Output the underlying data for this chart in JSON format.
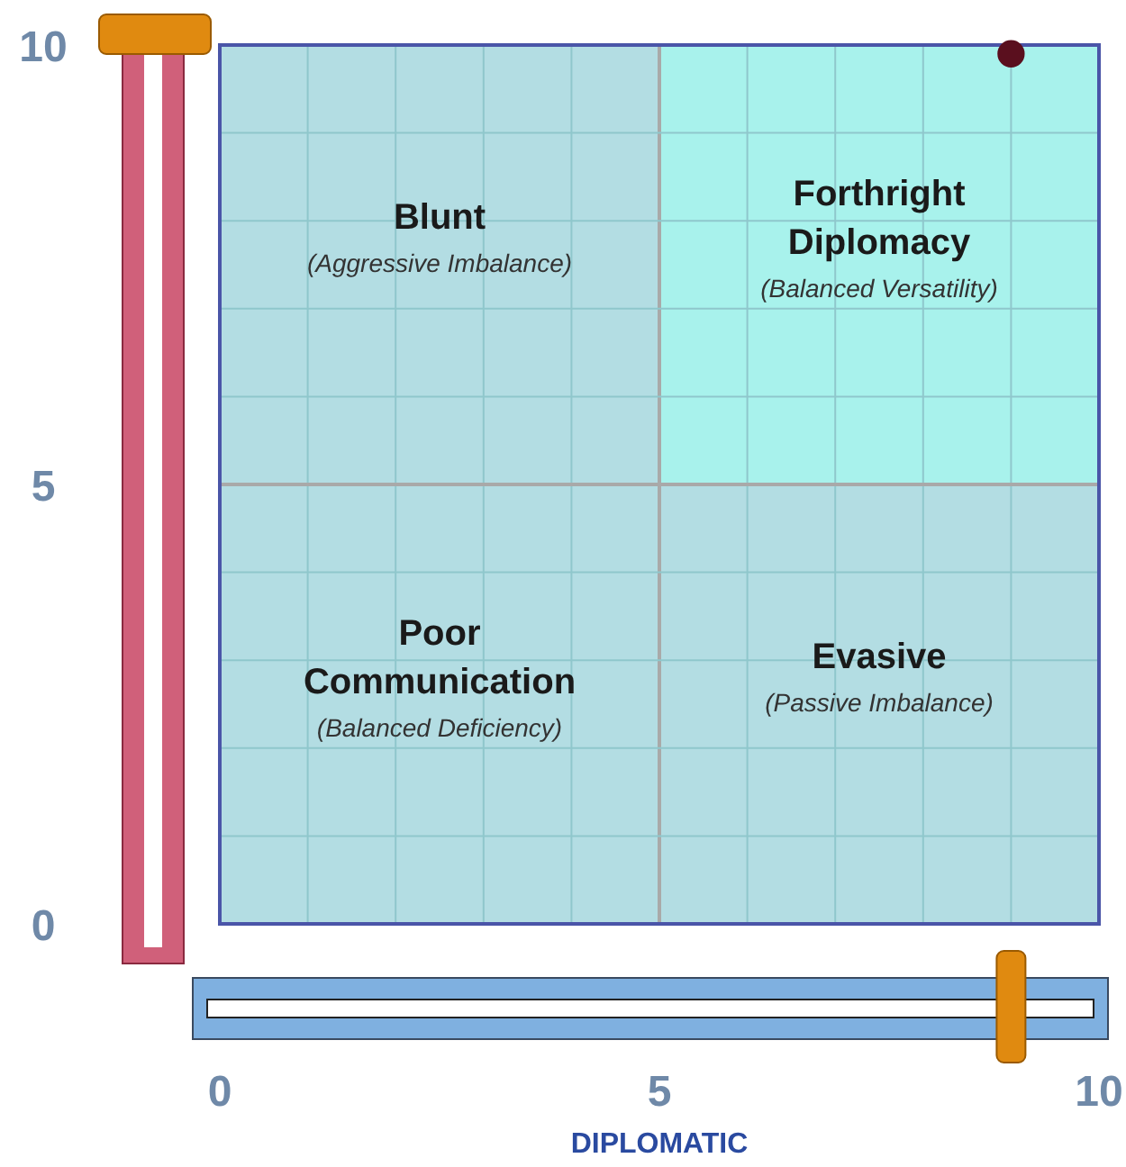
{
  "chart_data": {
    "type": "scatter",
    "xlabel": "DIPLOMATIC",
    "annotations": [
      "Blunt",
      "(Aggressive Imbalance)",
      "Forthright Diplomacy",
      "(Balanced Versatility)",
      "Poor Communication",
      "(Balanced Deficiency)",
      "Evasive",
      "(Passive Imbalance)"
    ],
    "x": [
      9
    ],
    "values": [
      9.9
    ],
    "color": "#5a0f1e",
    "xlim": [
      0,
      10
    ],
    "ylim": [
      0,
      10
    ],
    "xticks": [
      0,
      {
        "value": 1,
        "label": null
      },
      {
        "value": 2,
        "label": null
      },
      {
        "value": 3,
        "label": null
      },
      {
        "value": 4,
        "label": null
      },
      5,
      {
        "value": 6,
        "label": null
      },
      {
        "value": 7,
        "label": null
      },
      {
        "value": 8,
        "label": null
      },
      {
        "value": 9,
        "label": null
      },
      10
    ],
    "yticks": [
      0,
      {
        "value": 1,
        "label": null
      },
      {
        "value": 2,
        "label": null
      },
      {
        "value": 3,
        "label": null
      },
      {
        "value": 4,
        "label": null
      },
      5,
      {
        "value": 6,
        "label": null
      },
      {
        "value": 7,
        "label": null
      },
      {
        "value": 8,
        "label": null
      },
      {
        "value": 9,
        "label": null
      },
      10
    ],
    "grid": true,
    "marker": "circle"
  }
}
